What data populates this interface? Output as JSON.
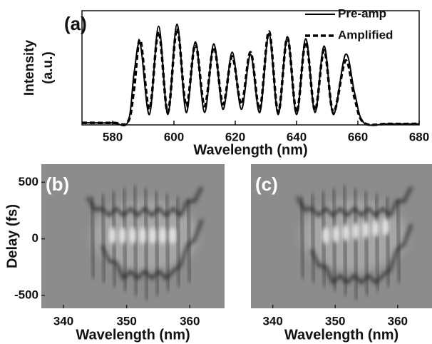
{
  "chart_data": [
    {
      "type": "line",
      "title": "(a)",
      "xlabel": "Wavelength (nm)",
      "ylabel": [
        "Intensity",
        "(a.u.)"
      ],
      "x": [
        570,
        580,
        585,
        587,
        589,
        592,
        595,
        598,
        601,
        604,
        607,
        610,
        613,
        616,
        619,
        622,
        625,
        628,
        631,
        634,
        637,
        640,
        643,
        646,
        649,
        652,
        656,
        659,
        662,
        670,
        680
      ],
      "series": [
        {
          "name": "Pre-amp",
          "color": "#000000",
          "style": "solid",
          "values": [
            0.02,
            0.02,
            0.03,
            0.5,
            0.78,
            0.1,
            0.95,
            0.1,
            0.97,
            0.12,
            0.8,
            0.12,
            0.78,
            0.15,
            0.7,
            0.15,
            0.68,
            0.12,
            0.88,
            0.1,
            0.85,
            0.1,
            0.83,
            0.12,
            0.76,
            0.1,
            0.68,
            0.3,
            0.02,
            0.01,
            0.01
          ]
        },
        {
          "name": "Amplified",
          "color": "#000000",
          "style": "dashed",
          "values": [
            0.02,
            0.02,
            0.03,
            0.35,
            0.82,
            0.15,
            0.9,
            0.12,
            0.93,
            0.18,
            0.78,
            0.18,
            0.75,
            0.2,
            0.66,
            0.2,
            0.7,
            0.15,
            0.9,
            0.12,
            0.84,
            0.12,
            0.8,
            0.14,
            0.72,
            0.12,
            0.62,
            0.25,
            0.02,
            0.01,
            0.01
          ]
        }
      ],
      "xlim": [
        570,
        680
      ],
      "xticks": [
        580,
        600,
        620,
        640,
        660,
        680
      ],
      "ylim": [
        0,
        1.1
      ]
    },
    {
      "type": "image",
      "title": "(b)",
      "xlabel": "Wavelength (nm)",
      "ylabel": "Delay (fs)",
      "xlim": [
        336.5,
        365.5
      ],
      "xticks": [
        340,
        350,
        360
      ],
      "ylim": [
        -615,
        660
      ],
      "yticks": [
        500,
        0,
        -500
      ]
    },
    {
      "type": "image",
      "title": "(c)",
      "xlabel": "Wavelength (nm)",
      "xlim": [
        336.5,
        365.5
      ],
      "xticks": [
        340,
        350,
        360
      ]
    }
  ]
}
